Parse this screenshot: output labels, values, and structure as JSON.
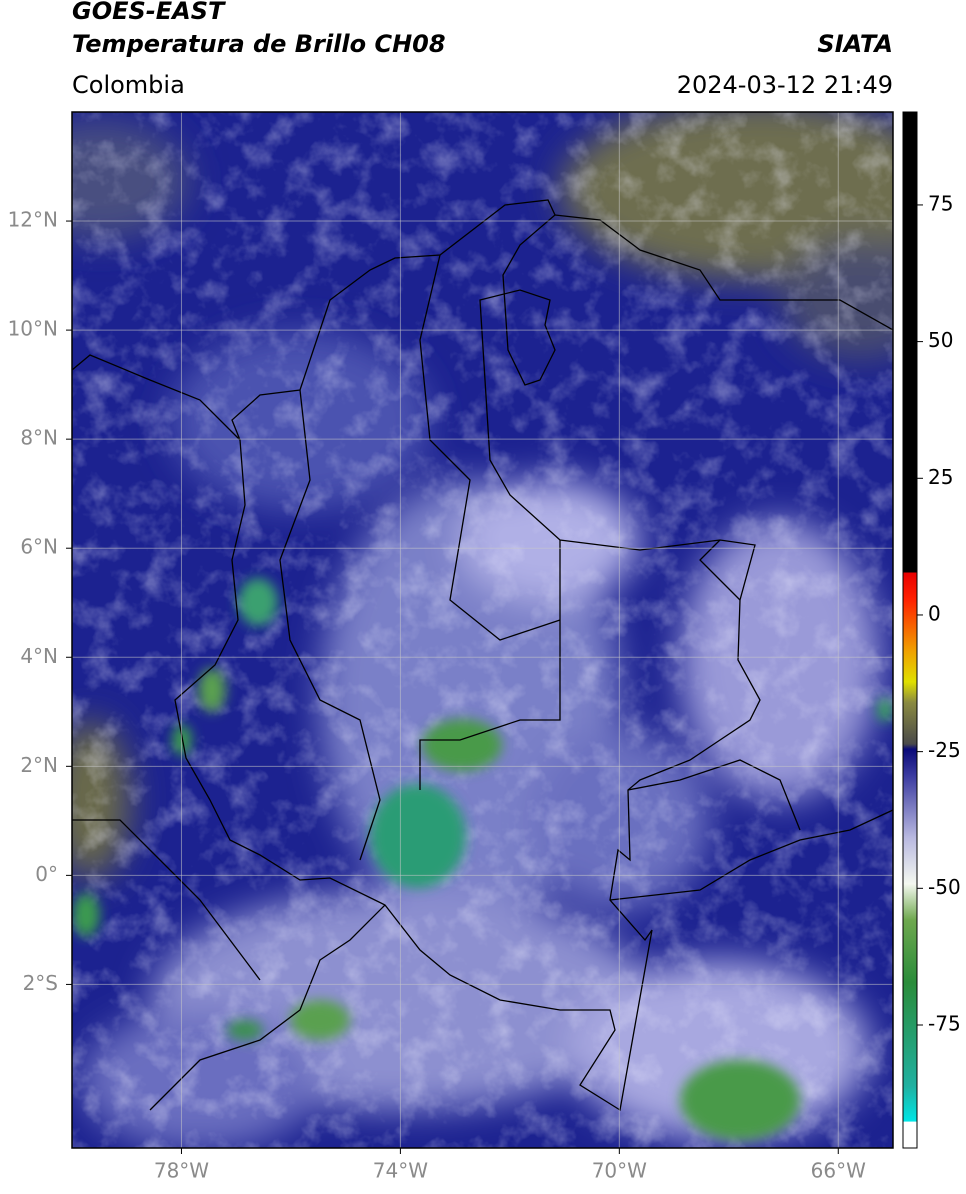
{
  "header": {
    "title": "GOES-EAST",
    "subtitle": "Temperatura de Brillo CH08",
    "region": "Colombia",
    "source": "SIATA",
    "datetime": "2024-03-12 21:49"
  },
  "map": {
    "lonlim": [
      -80,
      -65
    ],
    "latlim": [
      -5,
      14
    ],
    "xticks": [
      {
        "value": -78,
        "label": "78°W"
      },
      {
        "value": -74,
        "label": "74°W"
      },
      {
        "value": -70,
        "label": "70°W"
      },
      {
        "value": -66,
        "label": "66°W"
      }
    ],
    "yticks": [
      {
        "value": 12,
        "label": "12°N"
      },
      {
        "value": 10,
        "label": "10°N"
      },
      {
        "value": 8,
        "label": "8°N"
      },
      {
        "value": 6,
        "label": "6°N"
      },
      {
        "value": 4,
        "label": "4°N"
      },
      {
        "value": 2,
        "label": "2°N"
      },
      {
        "value": 0,
        "label": "0°"
      },
      {
        "value": -2,
        "label": "2°S"
      }
    ]
  },
  "colorbar": {
    "lim": [
      -97.5,
      92
    ],
    "ticks": [
      75,
      50,
      25,
      0,
      -25,
      -50,
      -75
    ]
  }
}
